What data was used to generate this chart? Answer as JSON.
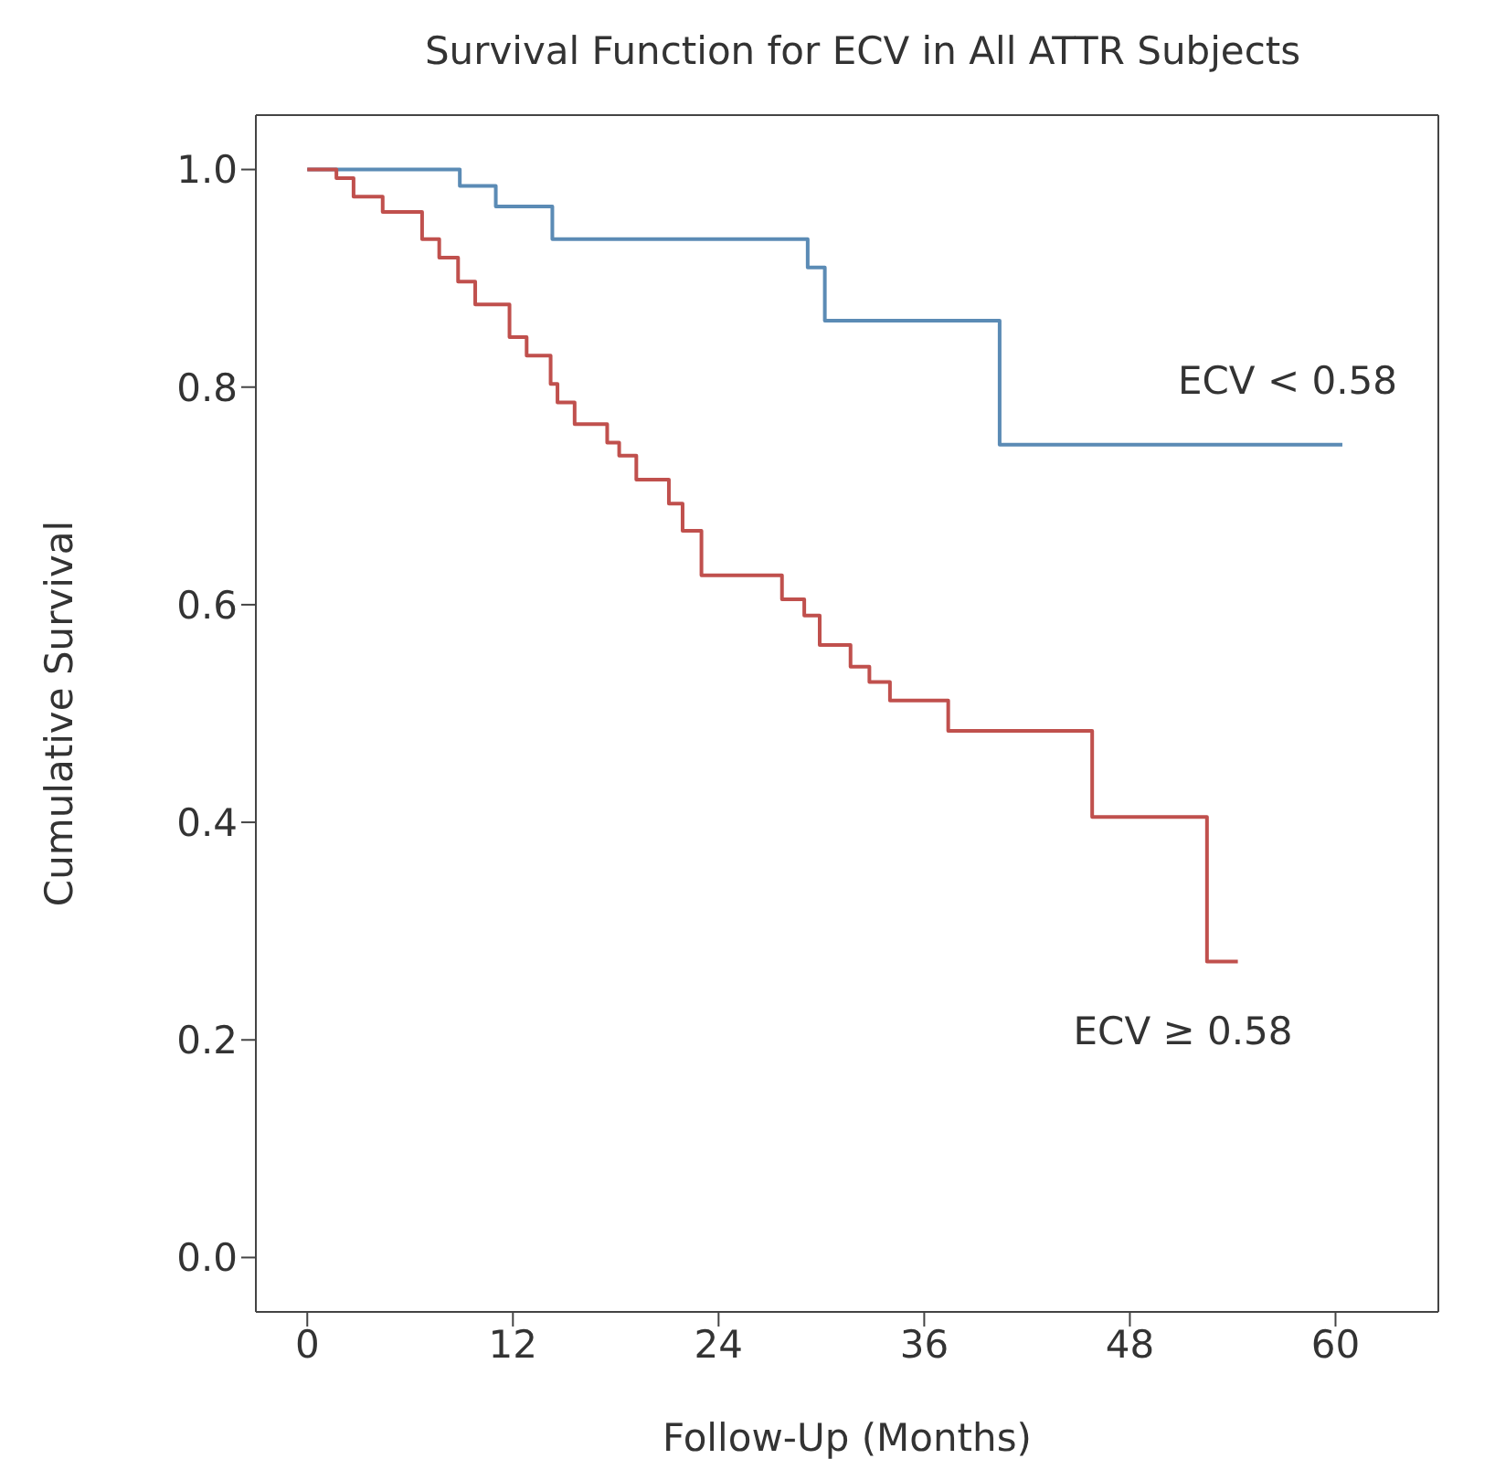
{
  "chart_data": {
    "type": "step",
    "title": "Survival Function for ECV in All ATTR Subjects",
    "xlabel": "Follow-Up (Months)",
    "ylabel": "Cumulative Survival",
    "xlim": [
      -3,
      66
    ],
    "xticks": [
      0,
      12,
      24,
      36,
      48,
      60
    ],
    "ylim": [
      -0.05,
      1.05
    ],
    "yticks": [
      {
        "value": 0,
        "label": "0.0"
      },
      0.2,
      0.4,
      0.6,
      0.8,
      {
        "value": 1,
        "label": "1.0"
      }
    ],
    "series": [
      {
        "name": "ECV < 0.58",
        "color": "#5b8bb5",
        "x": [
          0,
          8.9,
          11.0,
          14.3,
          29.2,
          30.2,
          40.4,
          60.4
        ],
        "values": [
          1.0,
          0.985,
          0.966,
          0.936,
          0.91,
          0.861,
          0.747,
          0.747
        ]
      },
      {
        "name": "ECV ≥ 0.58",
        "color": "#c0504d",
        "x": [
          0,
          1.7,
          2.7,
          4.4,
          6.7,
          7.7,
          8.8,
          9.8,
          11.8,
          12.8,
          14.2,
          14.6,
          15.6,
          17.5,
          18.2,
          19.2,
          21.1,
          21.9,
          23.0,
          27.7,
          29.0,
          29.9,
          31.7,
          32.8,
          34.0,
          37.4,
          45.8,
          52.5,
          54.3
        ],
        "values": [
          1.0,
          0.992,
          0.975,
          0.961,
          0.936,
          0.919,
          0.897,
          0.876,
          0.846,
          0.829,
          0.803,
          0.786,
          0.766,
          0.749,
          0.737,
          0.715,
          0.693,
          0.668,
          0.627,
          0.605,
          0.59,
          0.563,
          0.543,
          0.529,
          0.512,
          0.484,
          0.405,
          0.272,
          0.272
        ]
      }
    ]
  }
}
